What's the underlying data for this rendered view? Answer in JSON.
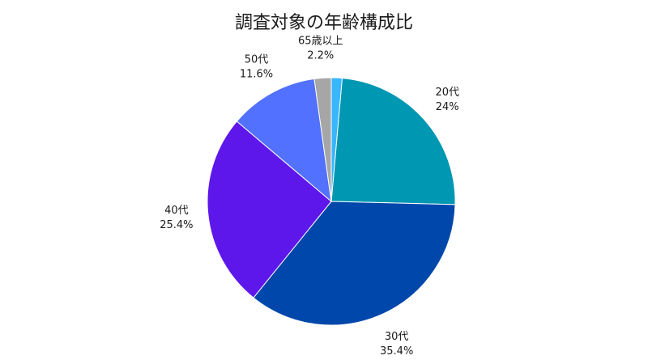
{
  "chart_data": {
    "type": "pie",
    "title": "調査対象の年齢構成比",
    "slices": [
      {
        "label": "20代",
        "value_text": "24%",
        "value": 24.0,
        "color": "#0097b2"
      },
      {
        "label": "30代",
        "value_text": "35.4%",
        "value": 35.4,
        "color": "#0047ab"
      },
      {
        "label": "40代",
        "value_text": "25.4%",
        "value": 25.4,
        "color": "#5e17eb"
      },
      {
        "label": "50代",
        "value_text": "11.6%",
        "value": 11.6,
        "color": "#5271ff"
      },
      {
        "label": "65歳以上",
        "value_text": "2.2%",
        "value": 2.2,
        "color": "#a6a6a6"
      },
      {
        "label": "",
        "value_text": "",
        "value": 1.4,
        "color": "#38b6ff"
      }
    ],
    "start_direction": "top",
    "direction": "clockwise",
    "legend": "none"
  }
}
